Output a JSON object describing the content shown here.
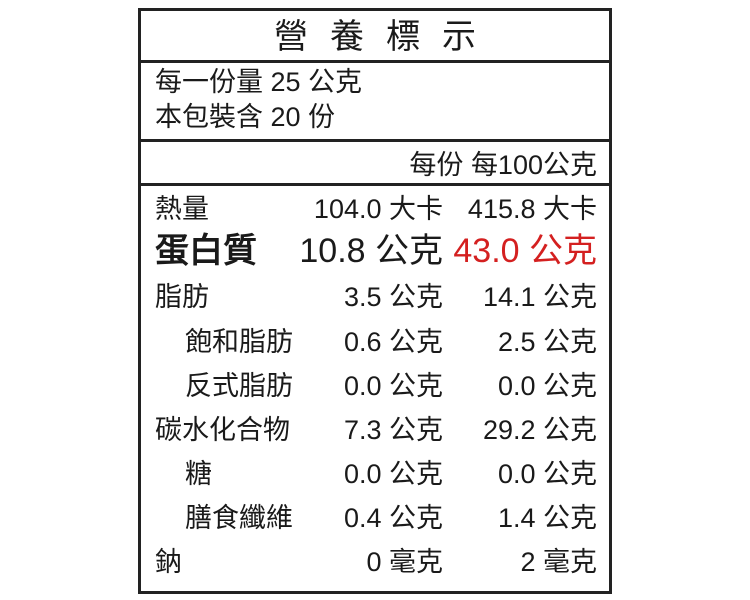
{
  "title": "營養標示",
  "serving": {
    "line1": "每一份量 25 公克",
    "line2": "本包裝含 20 份"
  },
  "columns": {
    "per_serving": "每份",
    "per_100g": "每100公克"
  },
  "highlight_color": "#d42020",
  "rows": [
    {
      "label": "熱量",
      "per_serving": "104.0 大卡",
      "per_100g": "415.8 大卡"
    },
    {
      "label": "蛋白質",
      "per_serving": "10.8 公克",
      "per_100g": "43.0 公克"
    },
    {
      "label": "脂肪",
      "per_serving": "3.5 公克",
      "per_100g": "14.1 公克"
    },
    {
      "label": "飽和脂肪",
      "per_serving": "0.6 公克",
      "per_100g": "2.5 公克"
    },
    {
      "label": "反式脂肪",
      "per_serving": "0.0 公克",
      "per_100g": "0.0 公克"
    },
    {
      "label": "碳水化合物",
      "per_serving": "7.3 公克",
      "per_100g": "29.2 公克"
    },
    {
      "label": "糖",
      "per_serving": "0.0 公克",
      "per_100g": "0.0 公克"
    },
    {
      "label": "膳食纖維",
      "per_serving": "0.4 公克",
      "per_100g": "1.4 公克"
    },
    {
      "label": "鈉",
      "per_serving": "0 毫克",
      "per_100g": "2 毫克"
    }
  ]
}
